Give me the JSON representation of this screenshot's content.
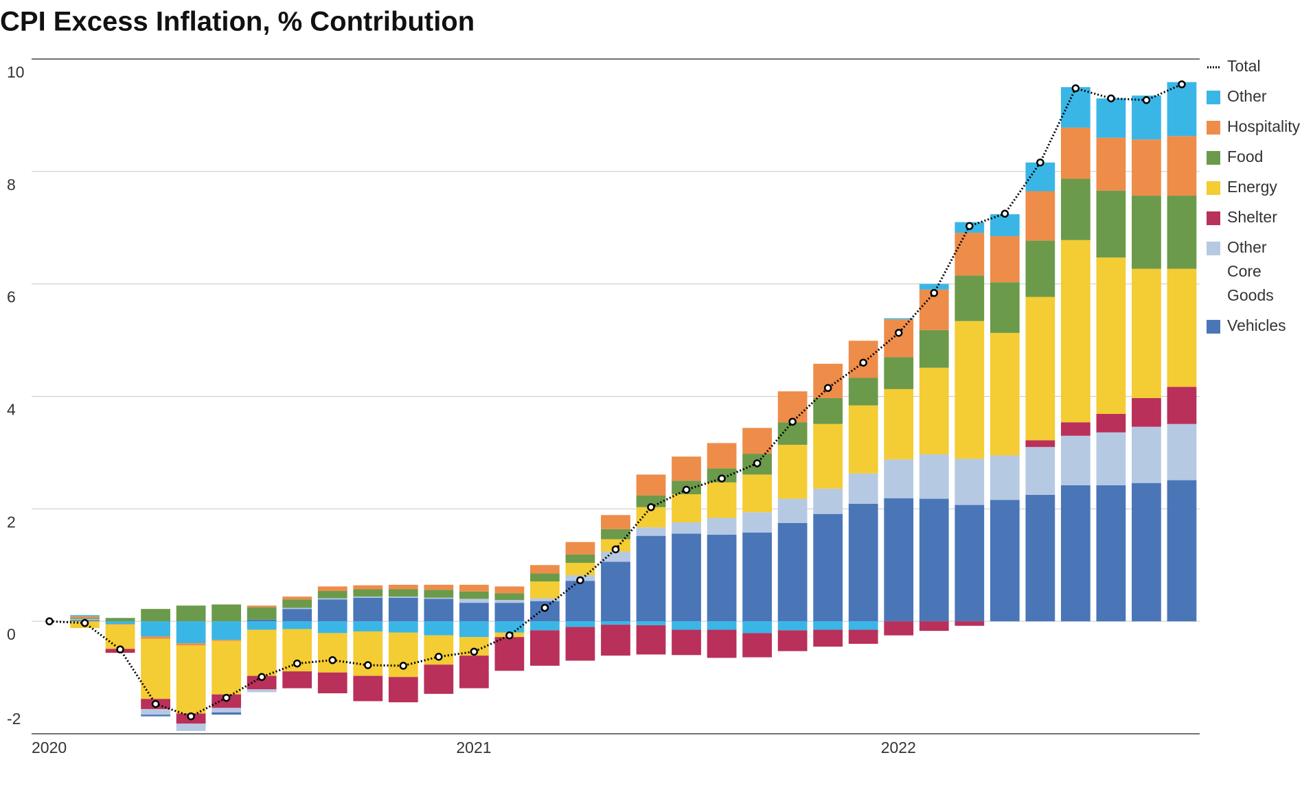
{
  "chart_data": {
    "type": "bar",
    "stacked": true,
    "title": "CPI Excess Inflation, % Contribution",
    "categories": [
      "2020",
      null,
      null,
      null,
      null,
      null,
      null,
      null,
      null,
      null,
      null,
      null,
      "2021",
      null,
      null,
      null,
      null,
      null,
      null,
      null,
      null,
      null,
      null,
      null,
      "2022",
      null,
      null,
      null,
      null,
      null,
      null,
      null,
      null
    ],
    "ylim": [
      -2,
      10
    ],
    "yticks": [
      -2,
      0,
      2,
      4,
      6,
      8,
      10
    ],
    "grid": true,
    "series": [
      {
        "name": "Vehicles",
        "color": "#4a76b8",
        "values": [
          0,
          0.02,
          0,
          -0.03,
          0,
          -0.04,
          0.03,
          0.22,
          0.39,
          0.42,
          0.42,
          0.4,
          0.33,
          0.33,
          0.36,
          0.72,
          1.06,
          1.52,
          1.56,
          1.54,
          1.58,
          1.75,
          1.91,
          2.09,
          2.19,
          2.18,
          2.07,
          2.16,
          2.25,
          2.42,
          2.42,
          2.46,
          2.51
        ]
      },
      {
        "name": "Other Core Goods",
        "color": "#b6c9e3",
        "values": [
          0,
          0.02,
          0,
          -0.1,
          -0.13,
          -0.08,
          -0.05,
          0.02,
          0.02,
          0.02,
          0.02,
          0.02,
          0.07,
          0.05,
          0.05,
          0.1,
          0.18,
          0.15,
          0.2,
          0.3,
          0.36,
          0.43,
          0.45,
          0.54,
          0.69,
          0.79,
          0.82,
          0.79,
          0.85,
          0.88,
          0.94,
          1.0,
          1.0
        ]
      },
      {
        "name": "Shelter",
        "color": "#b9305a",
        "values": [
          0,
          0,
          -0.07,
          -0.18,
          -0.18,
          -0.24,
          -0.24,
          -0.3,
          -0.37,
          -0.45,
          -0.45,
          -0.52,
          -0.58,
          -0.6,
          -0.63,
          -0.6,
          -0.55,
          -0.52,
          -0.45,
          -0.5,
          -0.43,
          -0.37,
          -0.3,
          -0.25,
          -0.25,
          -0.17,
          -0.08,
          0,
          0.12,
          0.24,
          0.33,
          0.51,
          0.66
        ]
      },
      {
        "name": "Energy",
        "color": "#f4cc33",
        "values": [
          0,
          -0.12,
          -0.43,
          -1.07,
          -1.21,
          -0.95,
          -0.82,
          -0.75,
          -0.7,
          -0.79,
          -0.79,
          -0.52,
          -0.33,
          -0.08,
          0.3,
          0.22,
          0.22,
          0.36,
          0.5,
          0.63,
          0.67,
          0.96,
          1.15,
          1.21,
          1.25,
          1.54,
          2.45,
          2.18,
          2.55,
          3.24,
          2.78,
          2.3,
          2.1
        ]
      },
      {
        "name": "Food",
        "color": "#6b9a4b",
        "values": [
          0,
          0.02,
          0.06,
          0.22,
          0.28,
          0.3,
          0.22,
          0.15,
          0.13,
          0.13,
          0.13,
          0.14,
          0.13,
          0.12,
          0.14,
          0.15,
          0.18,
          0.21,
          0.24,
          0.25,
          0.37,
          0.4,
          0.46,
          0.49,
          0.57,
          0.67,
          0.81,
          0.9,
          1.0,
          1.09,
          1.19,
          1.3,
          1.3
        ]
      },
      {
        "name": "Hospitality",
        "color": "#ee8c4a",
        "values": [
          0,
          0.03,
          -0.01,
          -0.04,
          -0.04,
          -0.02,
          0.03,
          0.05,
          0.08,
          0.07,
          0.08,
          0.09,
          0.12,
          0.12,
          0.15,
          0.22,
          0.25,
          0.37,
          0.43,
          0.45,
          0.46,
          0.55,
          0.61,
          0.66,
          0.67,
          0.72,
          0.76,
          0.82,
          0.88,
          0.91,
          0.94,
          1.0,
          1.06
        ]
      },
      {
        "name": "Other",
        "color": "#3ab6e6",
        "values": [
          0,
          0.02,
          -0.05,
          -0.27,
          -0.39,
          -0.33,
          -0.15,
          -0.14,
          -0.21,
          -0.18,
          -0.2,
          -0.25,
          -0.28,
          -0.2,
          -0.16,
          -0.1,
          -0.06,
          -0.07,
          -0.15,
          -0.15,
          -0.21,
          -0.16,
          -0.15,
          -0.15,
          0.02,
          0.1,
          0.19,
          0.39,
          0.51,
          0.72,
          0.7,
          0.78,
          0.96
        ]
      },
      {
        "name": "Total",
        "type": "line",
        "color": "#000000",
        "values": [
          0,
          -0.03,
          -0.5,
          -1.47,
          -1.69,
          -1.36,
          -0.99,
          -0.75,
          -0.69,
          -0.78,
          -0.79,
          -0.63,
          -0.54,
          -0.25,
          0.24,
          0.73,
          1.28,
          2.03,
          2.34,
          2.54,
          2.81,
          3.55,
          4.15,
          4.6,
          5.13,
          5.84,
          7.03,
          7.25,
          8.16,
          9.48,
          9.3,
          9.27,
          9.55
        ]
      }
    ]
  }
}
